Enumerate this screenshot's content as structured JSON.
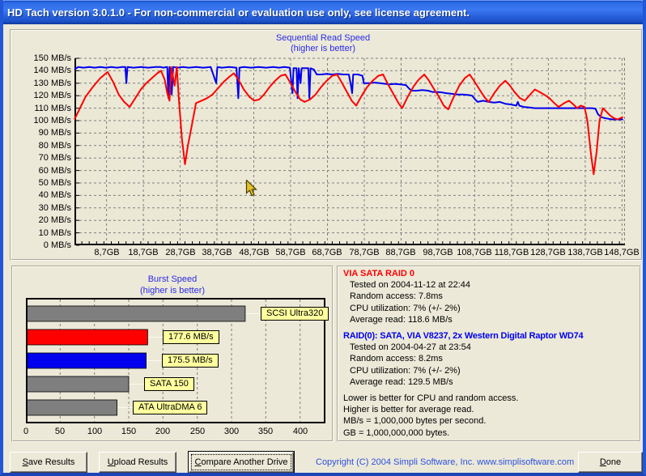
{
  "window": {
    "title": "HD Tach version 3.0.1.0  - For non-commercial or evaluation use only, see license agreement."
  },
  "colors": {
    "window_bg": "#ECE9D8",
    "titlebar_blue": "#2E6CE8",
    "window_border_blue": "#2157D8",
    "chart_title_blue": "#2B2BE8",
    "series_red": "#FF0000",
    "series_blue": "#0000EE",
    "bar_gray": "#7F7F7F",
    "bar_label_yellow": "#FFFF9E",
    "heading_red": "#FF0000",
    "heading_blue": "#0000EE",
    "copyright_blue": "#2B50DF"
  },
  "chart_data": [
    {
      "id": "sequential_read",
      "type": "line",
      "title": "Sequential Read Speed",
      "subtitle": "(higher is better)",
      "grid": "dashed",
      "ylim": [
        0,
        150
      ],
      "y_ticks": [
        150,
        140,
        130,
        120,
        110,
        100,
        90,
        80,
        70,
        60,
        50,
        40,
        30,
        20,
        10,
        0
      ],
      "y_tick_unit": "MB/s",
      "xlim_gb": [
        0,
        149.5
      ],
      "x_tick_gb": [
        8.7,
        18.7,
        28.7,
        38.7,
        48.7,
        58.7,
        68.7,
        78.7,
        88.7,
        98.7,
        108.7,
        118.7,
        128.7,
        138.7,
        148.7
      ],
      "x_tick_labels": [
        "8,7GB",
        "18,7GB",
        "28,7GB",
        "38,7GB",
        "48,7GB",
        "58,7GB",
        "68,7GB",
        "78,7GB",
        "88,7GB",
        "98,7GB",
        "108,7GB",
        "118,7GB",
        "128,7GB",
        "138,7GB",
        "148,7GB"
      ],
      "series": [
        {
          "name": "RAID(0): SATA, VIA V8237, 2x Western Digital Raptor WD74",
          "color": "#0000EE",
          "points": [
            [
              0,
              141
            ],
            [
              1,
              143
            ],
            [
              2.5,
              142.5
            ],
            [
              4,
              143
            ],
            [
              5.5,
              142.5
            ],
            [
              7,
              143
            ],
            [
              8.5,
              142.5
            ],
            [
              10,
              143
            ],
            [
              11.5,
              142.5
            ],
            [
              13,
              143
            ],
            [
              13.8,
              143
            ],
            [
              14.1,
              130
            ],
            [
              14.4,
              143
            ],
            [
              16,
              142.5
            ],
            [
              18,
              143
            ],
            [
              20,
              142.5
            ],
            [
              22,
              143
            ],
            [
              23.5,
              143
            ],
            [
              24,
              142.5
            ],
            [
              25.2,
              143
            ],
            [
              25.5,
              118
            ],
            [
              25.8,
              143
            ],
            [
              26.4,
              121
            ],
            [
              26.8,
              143
            ],
            [
              28,
              142.5
            ],
            [
              29.5,
              143
            ],
            [
              31,
              142.5
            ],
            [
              33,
              143
            ],
            [
              35,
              142.5
            ],
            [
              37,
              143
            ],
            [
              38.5,
              130
            ],
            [
              38.8,
              143
            ],
            [
              40,
              142.5
            ],
            [
              42,
              143
            ],
            [
              44,
              142.5
            ],
            [
              44.5,
              118
            ],
            [
              44.8,
              142.5
            ],
            [
              46,
              143
            ],
            [
              48,
              142.5
            ],
            [
              50,
              143
            ],
            [
              52,
              142.5
            ],
            [
              54,
              143
            ],
            [
              55.5,
              142.5
            ],
            [
              57,
              143
            ],
            [
              58.5,
              142.5
            ],
            [
              59.2,
              122
            ],
            [
              59.5,
              142
            ],
            [
              60.3,
              142
            ],
            [
              60.6,
              118
            ],
            [
              60.9,
              142
            ],
            [
              61.4,
              130
            ],
            [
              61.7,
              142
            ],
            [
              62.5,
              142
            ],
            [
              63.5,
              142
            ],
            [
              63.8,
              118
            ],
            [
              64.1,
              142
            ],
            [
              65,
              141
            ],
            [
              65.8,
              137
            ],
            [
              67,
              137
            ],
            [
              68.5,
              137.5
            ],
            [
              70,
              137
            ],
            [
              71.5,
              137.5
            ],
            [
              73,
              137
            ],
            [
              74.5,
              137
            ],
            [
              75.1,
              128
            ],
            [
              75.4,
              122
            ],
            [
              75.7,
              137
            ],
            [
              77,
              137
            ],
            [
              78.2,
              136
            ],
            [
              78.6,
              130
            ],
            [
              80,
              130
            ],
            [
              81.5,
              130.5
            ],
            [
              83,
              130
            ],
            [
              84.5,
              129.5
            ],
            [
              85.5,
              129
            ],
            [
              87,
              129.5
            ],
            [
              88.5,
              129
            ],
            [
              90,
              128.5
            ],
            [
              90.8,
              126
            ],
            [
              91.5,
              124
            ],
            [
              93,
              124
            ],
            [
              94.5,
              124.5
            ],
            [
              96,
              124
            ],
            [
              97.2,
              123
            ],
            [
              98.5,
              123
            ],
            [
              100,
              122.5
            ],
            [
              101,
              122
            ],
            [
              102.5,
              121.5
            ],
            [
              104,
              121
            ],
            [
              105.5,
              121
            ],
            [
              107,
              120.5
            ],
            [
              108,
              120
            ],
            [
              108.8,
              117
            ],
            [
              109.5,
              115
            ],
            [
              111,
              116
            ],
            [
              112.5,
              115
            ],
            [
              114,
              114.5
            ],
            [
              115.5,
              115
            ],
            [
              117,
              113.5
            ],
            [
              118.5,
              113
            ],
            [
              120,
              112
            ],
            [
              120.4,
              115
            ],
            [
              120.8,
              112
            ],
            [
              122,
              111
            ],
            [
              123.5,
              110.5
            ],
            [
              125,
              110
            ],
            [
              127,
              110
            ],
            [
              129,
              110
            ],
            [
              131,
              110
            ],
            [
              133,
              110
            ],
            [
              135,
              110
            ],
            [
              137,
              110
            ],
            [
              139,
              110
            ],
            [
              140.5,
              110
            ],
            [
              141.5,
              109.5
            ],
            [
              142.2,
              105
            ],
            [
              143,
              103
            ],
            [
              144,
              102
            ],
            [
              145,
              101.5
            ],
            [
              146,
              101
            ],
            [
              147.5,
              101
            ],
            [
              149,
              101
            ]
          ]
        },
        {
          "name": "VIA SATA RAID 0",
          "color": "#FF0000",
          "points": [
            [
              0,
              101
            ],
            [
              1.5,
              110
            ],
            [
              3,
              119
            ],
            [
              5,
              127
            ],
            [
              7,
              134
            ],
            [
              9,
              139
            ],
            [
              10.5,
              131
            ],
            [
              12,
              121
            ],
            [
              13.5,
              115
            ],
            [
              15,
              111
            ],
            [
              16.5,
              118
            ],
            [
              18,
              125
            ],
            [
              19.5,
              130
            ],
            [
              21,
              134
            ],
            [
              22.5,
              138
            ],
            [
              23.5,
              140
            ],
            [
              24.5,
              133
            ],
            [
              25.2,
              122
            ],
            [
              25.8,
              116
            ],
            [
              26.3,
              143
            ],
            [
              27.2,
              128
            ],
            [
              27.8,
              143
            ],
            [
              28.4,
              115
            ],
            [
              29.2,
              85
            ],
            [
              30,
              65
            ],
            [
              30.8,
              80
            ],
            [
              31.8,
              95
            ],
            [
              33,
              114
            ],
            [
              34.5,
              116
            ],
            [
              36,
              118
            ],
            [
              37.5,
              121
            ],
            [
              39,
              126
            ],
            [
              40.5,
              131
            ],
            [
              42,
              135
            ],
            [
              43.3,
              138
            ],
            [
              44.5,
              133
            ],
            [
              46,
              125
            ],
            [
              47.5,
              119
            ],
            [
              48.8,
              116
            ],
            [
              50.2,
              117
            ],
            [
              51.5,
              121
            ],
            [
              53,
              127
            ],
            [
              54.5,
              132
            ],
            [
              56,
              136
            ],
            [
              57.3,
              137
            ],
            [
              58.5,
              131
            ],
            [
              60,
              123
            ],
            [
              61.3,
              117
            ],
            [
              62.5,
              115
            ],
            [
              64,
              117
            ],
            [
              65.5,
              121
            ],
            [
              67,
              127
            ],
            [
              68.5,
              132
            ],
            [
              70,
              136
            ],
            [
              71.3,
              137
            ],
            [
              72.5,
              131
            ],
            [
              74,
              123
            ],
            [
              75.3,
              116
            ],
            [
              76.5,
              112
            ],
            [
              78,
              120
            ],
            [
              79.5,
              127
            ],
            [
              81,
              132
            ],
            [
              82.5,
              136
            ],
            [
              83.8,
              137
            ],
            [
              85,
              130
            ],
            [
              86.5,
              122
            ],
            [
              88,
              114
            ],
            [
              89,
              110
            ],
            [
              90.5,
              119
            ],
            [
              92,
              127
            ],
            [
              93.5,
              133
            ],
            [
              95,
              137
            ],
            [
              96.3,
              132
            ],
            [
              97.5,
              126
            ],
            [
              99,
              119
            ],
            [
              100.3,
              112
            ],
            [
              101.5,
              109
            ],
            [
              103,
              119
            ],
            [
              104.5,
              128
            ],
            [
              106,
              134
            ],
            [
              107.3,
              137
            ],
            [
              108.5,
              132
            ],
            [
              110,
              125
            ],
            [
              111.3,
              119
            ],
            [
              112.5,
              115
            ],
            [
              114,
              122
            ],
            [
              115.5,
              128
            ],
            [
              117,
              132
            ],
            [
              118.3,
              128
            ],
            [
              119.5,
              123
            ],
            [
              121,
              118
            ],
            [
              122.3,
              116
            ],
            [
              123.5,
              120
            ],
            [
              125,
              125
            ],
            [
              126.3,
              123
            ],
            [
              127.5,
              121
            ],
            [
              129,
              118
            ],
            [
              130.3,
              114
            ],
            [
              131.5,
              111
            ],
            [
              133,
              114
            ],
            [
              134.3,
              116
            ],
            [
              135.5,
              113
            ],
            [
              136.5,
              110
            ],
            [
              137.5,
              112
            ],
            [
              138.5,
              111
            ],
            [
              139.3,
              100
            ],
            [
              140.2,
              75
            ],
            [
              141,
              57
            ],
            [
              141.8,
              75
            ],
            [
              142.6,
              100
            ],
            [
              143.5,
              110
            ],
            [
              144.5,
              107
            ],
            [
              145.5,
              104
            ],
            [
              146.5,
              102
            ],
            [
              147.5,
              101
            ],
            [
              149,
              103
            ]
          ]
        }
      ]
    },
    {
      "id": "burst_speed",
      "type": "bar",
      "title": "Burst Speed",
      "subtitle": "(higher is better)",
      "orientation": "horizontal",
      "xlim": [
        0,
        437
      ],
      "x_ticks": [
        0,
        50,
        100,
        150,
        200,
        250,
        300,
        350,
        400
      ],
      "bars": [
        {
          "label": "SCSI Ultra320",
          "value": 320,
          "color": "#7F7F7F"
        },
        {
          "label": "177.6 MB/s",
          "value": 177.6,
          "color": "#FF0000"
        },
        {
          "label": "175.5 MB/s",
          "value": 175.5,
          "color": "#0000EE"
        },
        {
          "label": "SATA 150",
          "value": 150,
          "color": "#7F7F7F"
        },
        {
          "label": "ATA UltraDMA 6",
          "value": 133,
          "color": "#7F7F7F"
        }
      ]
    }
  ],
  "info_panel": {
    "current": {
      "heading": "VIA SATA RAID 0",
      "lines": [
        "Tested on 2004-11-12 at 22:44",
        "Random access: 7.8ms",
        "CPU utilization: 7% (+/- 2%)",
        "Average read: 118.6 MB/s"
      ]
    },
    "comparison": {
      "heading": "RAID(0): SATA, VIA V8237, 2x Western Digital Raptor WD74",
      "lines": [
        "Tested on 2004-04-27 at 23:54",
        "Random access: 8.2ms",
        "CPU utilization: 7% (+/- 2%)",
        "Average read: 129.5 MB/s"
      ]
    },
    "notes": [
      "Lower is better for CPU and random access.",
      "Higher is better for average read.",
      "MB/s = 1,000,000 bytes per second.",
      "GB = 1,000,000,000 bytes."
    ]
  },
  "footer": {
    "save_button": "Save Results",
    "upload_button": "Upload Results",
    "compare_button": "Compare Another Drive",
    "copyright": "Copyright (C) 2004 Simpli Software, Inc. www.simplisoftware.com",
    "done_button": "Done"
  }
}
